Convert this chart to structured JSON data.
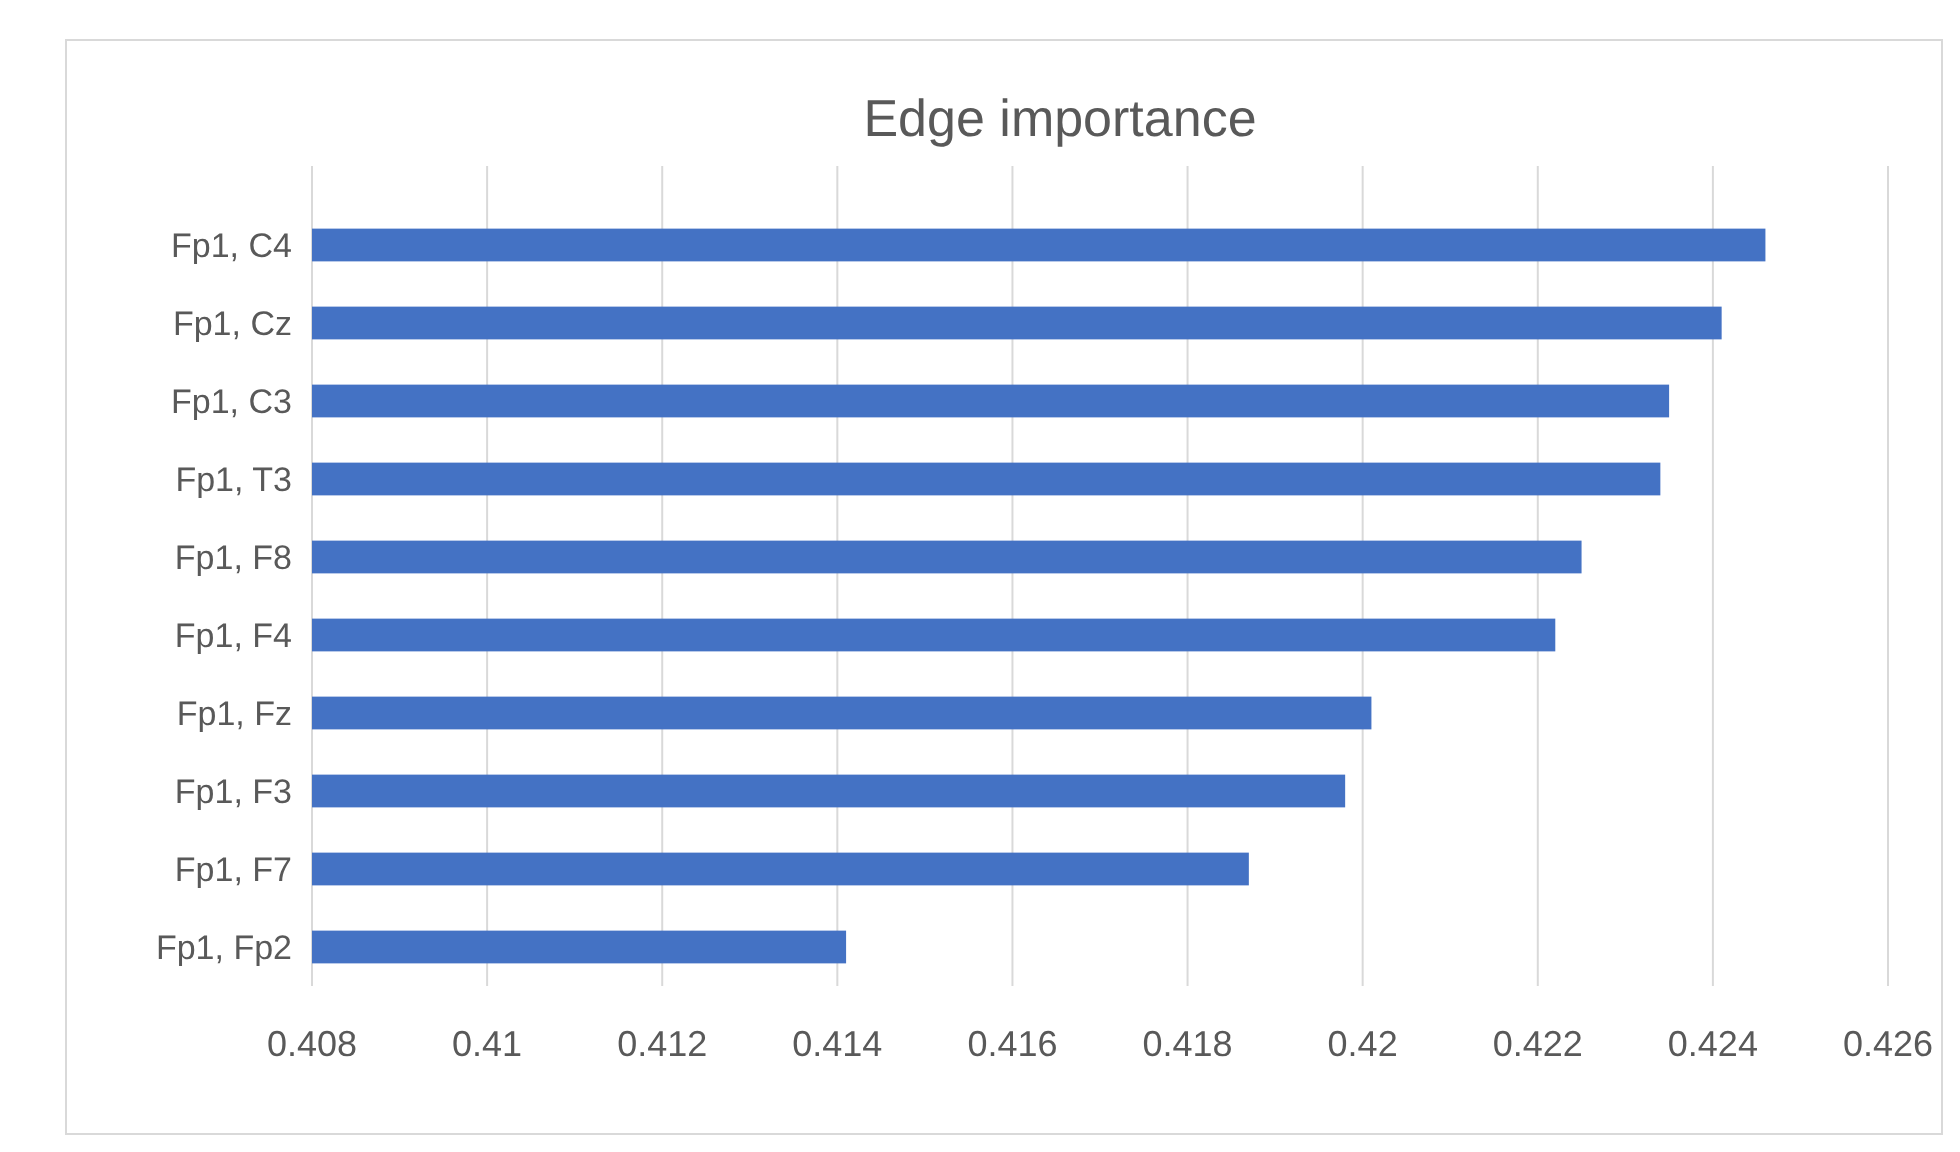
{
  "chart_data": {
    "type": "bar",
    "orientation": "horizontal",
    "title": "Edge importance",
    "categories": [
      "Fp1, C4",
      "Fp1, Cz",
      "Fp1, C3",
      "Fp1, T3",
      "Fp1, F8",
      "Fp1, F4",
      "Fp1, Fz",
      "Fp1, F3",
      "Fp1, F7",
      "Fp1, Fp2"
    ],
    "values": [
      0.4246,
      0.4241,
      0.4235,
      0.4234,
      0.4225,
      0.4222,
      0.4201,
      0.4198,
      0.4187,
      0.4141
    ],
    "color": "#4472c4",
    "xlim": [
      0.408,
      0.426
    ],
    "xticks": [
      0.408,
      {
        "value": 0.41,
        "label": "0.41"
      },
      0.412,
      0.414,
      0.416,
      0.418,
      {
        "value": 0.42,
        "label": "0.42"
      },
      0.422,
      0.424,
      0.426
    ],
    "grid": "x"
  }
}
